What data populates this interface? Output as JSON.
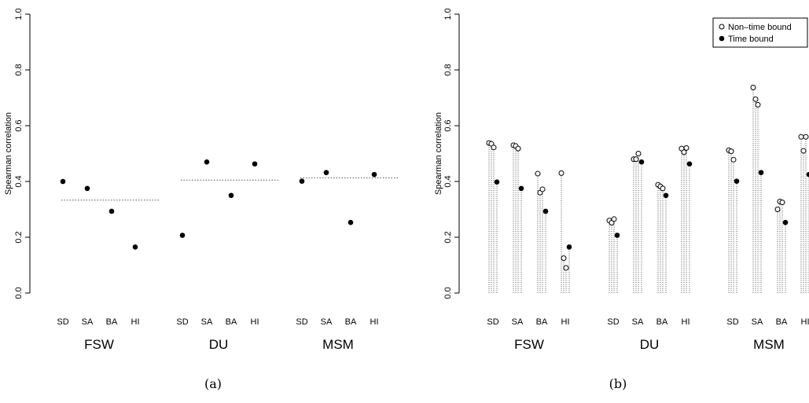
{
  "chart_data": [
    {
      "type": "scatter",
      "panel": "a",
      "caption": "(a)",
      "ylabel": "Spearman correlation",
      "ylim": [
        0.0,
        1.0
      ],
      "yticks": [
        "0.0",
        "0.2",
        "0.4",
        "0.6",
        "0.8",
        "1.0"
      ],
      "groups": [
        {
          "label": "FSW",
          "subgroups": [
            "SD",
            "SA",
            "BA",
            "HI"
          ],
          "values": [
            0.4,
            0.375,
            0.293,
            0.165
          ],
          "reference": 0.333
        },
        {
          "label": "DU",
          "subgroups": [
            "SD",
            "SA",
            "BA",
            "HI"
          ],
          "values": [
            0.207,
            0.47,
            0.35,
            0.463
          ],
          "reference": 0.405
        },
        {
          "label": "MSM",
          "subgroups": [
            "SD",
            "SA",
            "BA",
            "HI"
          ],
          "values": [
            0.401,
            0.432,
            0.253,
            0.425
          ],
          "reference": 0.413
        }
      ]
    },
    {
      "type": "scatter",
      "panel": "b",
      "caption": "(b)",
      "ylabel": "Spearman correlation",
      "ylim": [
        0.0,
        1.0
      ],
      "yticks": [
        "0.0",
        "0.2",
        "0.4",
        "0.6",
        "0.8",
        "1.0"
      ],
      "legend": {
        "position": "top-right",
        "entries": [
          "Non–time bound",
          "Time bound"
        ]
      },
      "series": [
        {
          "name": "Non–time bound",
          "marker": "open-circle"
        },
        {
          "name": "Time bound",
          "marker": "filled-circle"
        }
      ],
      "groups": [
        {
          "label": "FSW",
          "subgroups": [
            {
              "label": "SD",
              "non_time_bound": [
                0.538,
                0.535,
                0.522
              ],
              "time_bound": 0.398
            },
            {
              "label": "SA",
              "non_time_bound": [
                0.53,
                0.527,
                0.518
              ],
              "time_bound": 0.375
            },
            {
              "label": "BA",
              "non_time_bound": [
                0.428,
                0.36,
                0.372
              ],
              "time_bound": 0.293
            },
            {
              "label": "HI",
              "non_time_bound": [
                0.43,
                0.125,
                0.09
              ],
              "time_bound": 0.165
            }
          ]
        },
        {
          "label": "DU",
          "subgroups": [
            {
              "label": "SD",
              "non_time_bound": [
                0.26,
                0.252,
                0.265
              ],
              "time_bound": 0.207
            },
            {
              "label": "SA",
              "non_time_bound": [
                0.48,
                0.48,
                0.5
              ],
              "time_bound": 0.47
            },
            {
              "label": "BA",
              "non_time_bound": [
                0.388,
                0.382,
                0.375
              ],
              "time_bound": 0.35
            },
            {
              "label": "HI",
              "non_time_bound": [
                0.518,
                0.505,
                0.52
              ],
              "time_bound": 0.463
            }
          ]
        },
        {
          "label": "MSM",
          "subgroups": [
            {
              "label": "SD",
              "non_time_bound": [
                0.512,
                0.508,
                0.478
              ],
              "time_bound": 0.401
            },
            {
              "label": "SA",
              "non_time_bound": [
                0.737,
                0.695,
                0.675
              ],
              "time_bound": 0.432
            },
            {
              "label": "BA",
              "non_time_bound": [
                0.3,
                0.328,
                0.325
              ],
              "time_bound": 0.253
            },
            {
              "label": "HI",
              "non_time_bound": [
                0.56,
                0.51,
                0.56
              ],
              "time_bound": 0.425
            }
          ]
        }
      ]
    }
  ]
}
